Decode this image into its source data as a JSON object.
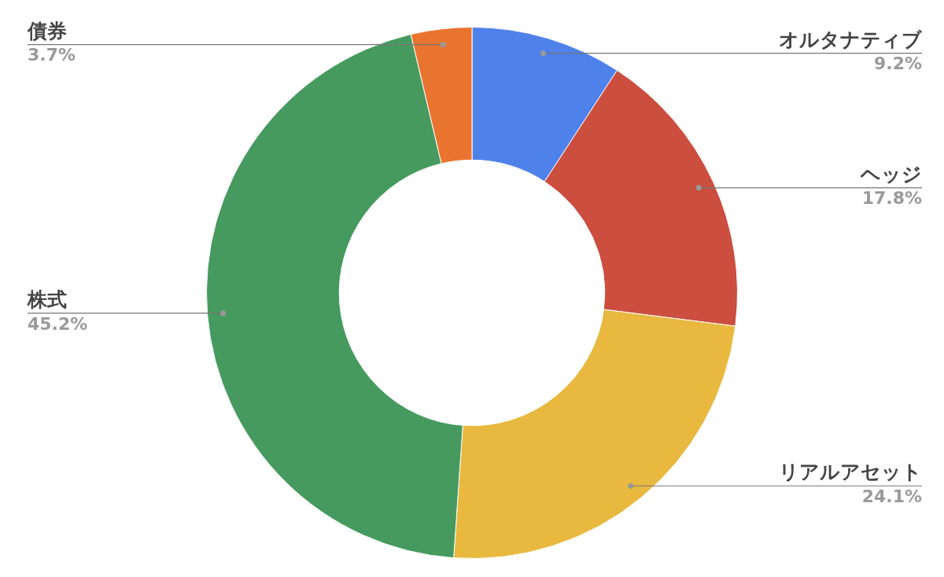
{
  "chart_data": {
    "type": "donut",
    "categories": [
      "オルタナティブ",
      "ヘッジ",
      "リアルアセット",
      "株式",
      "債券"
    ],
    "values": [
      9.2,
      17.8,
      24.1,
      45.2,
      3.7
    ],
    "colors": [
      "#4f81ea",
      "#cb4e3f",
      "#e8b83f",
      "#469a5f",
      "#e9742f"
    ],
    "value_labels": [
      "9.2%",
      "17.8%",
      "24.1%",
      "45.2%",
      "3.7%"
    ],
    "legend": false
  }
}
